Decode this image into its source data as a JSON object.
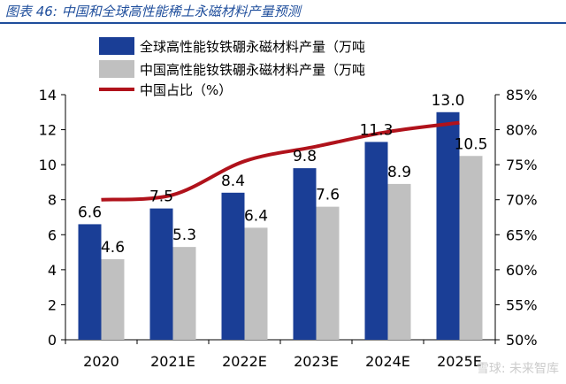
{
  "figure_title": "图表 46:  中国和全球高性能稀土永磁材料产量预测",
  "watermark": "雪球: 未来智库",
  "colors": {
    "global_bar": "#1a3e96",
    "china_bar": "#c0c0c0",
    "share_line": "#b0121b",
    "title": "#1f4e9c"
  },
  "chart_data": {
    "type": "bar",
    "categories": [
      "2020",
      "2021E",
      "2022E",
      "2023E",
      "2024E",
      "2025E"
    ],
    "series": [
      {
        "name": "全球高性能钕铁硼永磁材料产量（万吨",
        "type": "bar",
        "axis": "left",
        "values": [
          6.6,
          7.5,
          8.4,
          9.8,
          11.3,
          13.0
        ],
        "labels": [
          "6.6",
          "7.5",
          "8.4",
          "9.8",
          "11.3",
          "13.0"
        ]
      },
      {
        "name": "中国高性能钕铁硼永磁材料产量（万吨",
        "type": "bar",
        "axis": "left",
        "values": [
          4.6,
          5.3,
          6.4,
          7.6,
          8.9,
          10.5
        ],
        "labels": [
          "4.6",
          "5.3",
          "6.4",
          "7.6",
          "8.9",
          "10.5"
        ]
      },
      {
        "name": "中国占比（%）",
        "type": "line",
        "axis": "right",
        "values": [
          70,
          70.7,
          75.5,
          77.6,
          79.7,
          81.0
        ]
      }
    ],
    "y_left": {
      "min": 0,
      "max": 14,
      "ticks": [
        0,
        2,
        4,
        6,
        8,
        10,
        12,
        14
      ],
      "tick_labels": [
        "0",
        "2",
        "4",
        "6",
        "8",
        "10",
        "12",
        "14"
      ]
    },
    "y_right": {
      "min": 50,
      "max": 85,
      "ticks": [
        50,
        55,
        60,
        65,
        70,
        75,
        80,
        85
      ],
      "tick_labels": [
        "50%",
        "55%",
        "60%",
        "65%",
        "70%",
        "75%",
        "80%",
        "85%"
      ]
    },
    "grid": false,
    "legend_position": "top-left"
  }
}
